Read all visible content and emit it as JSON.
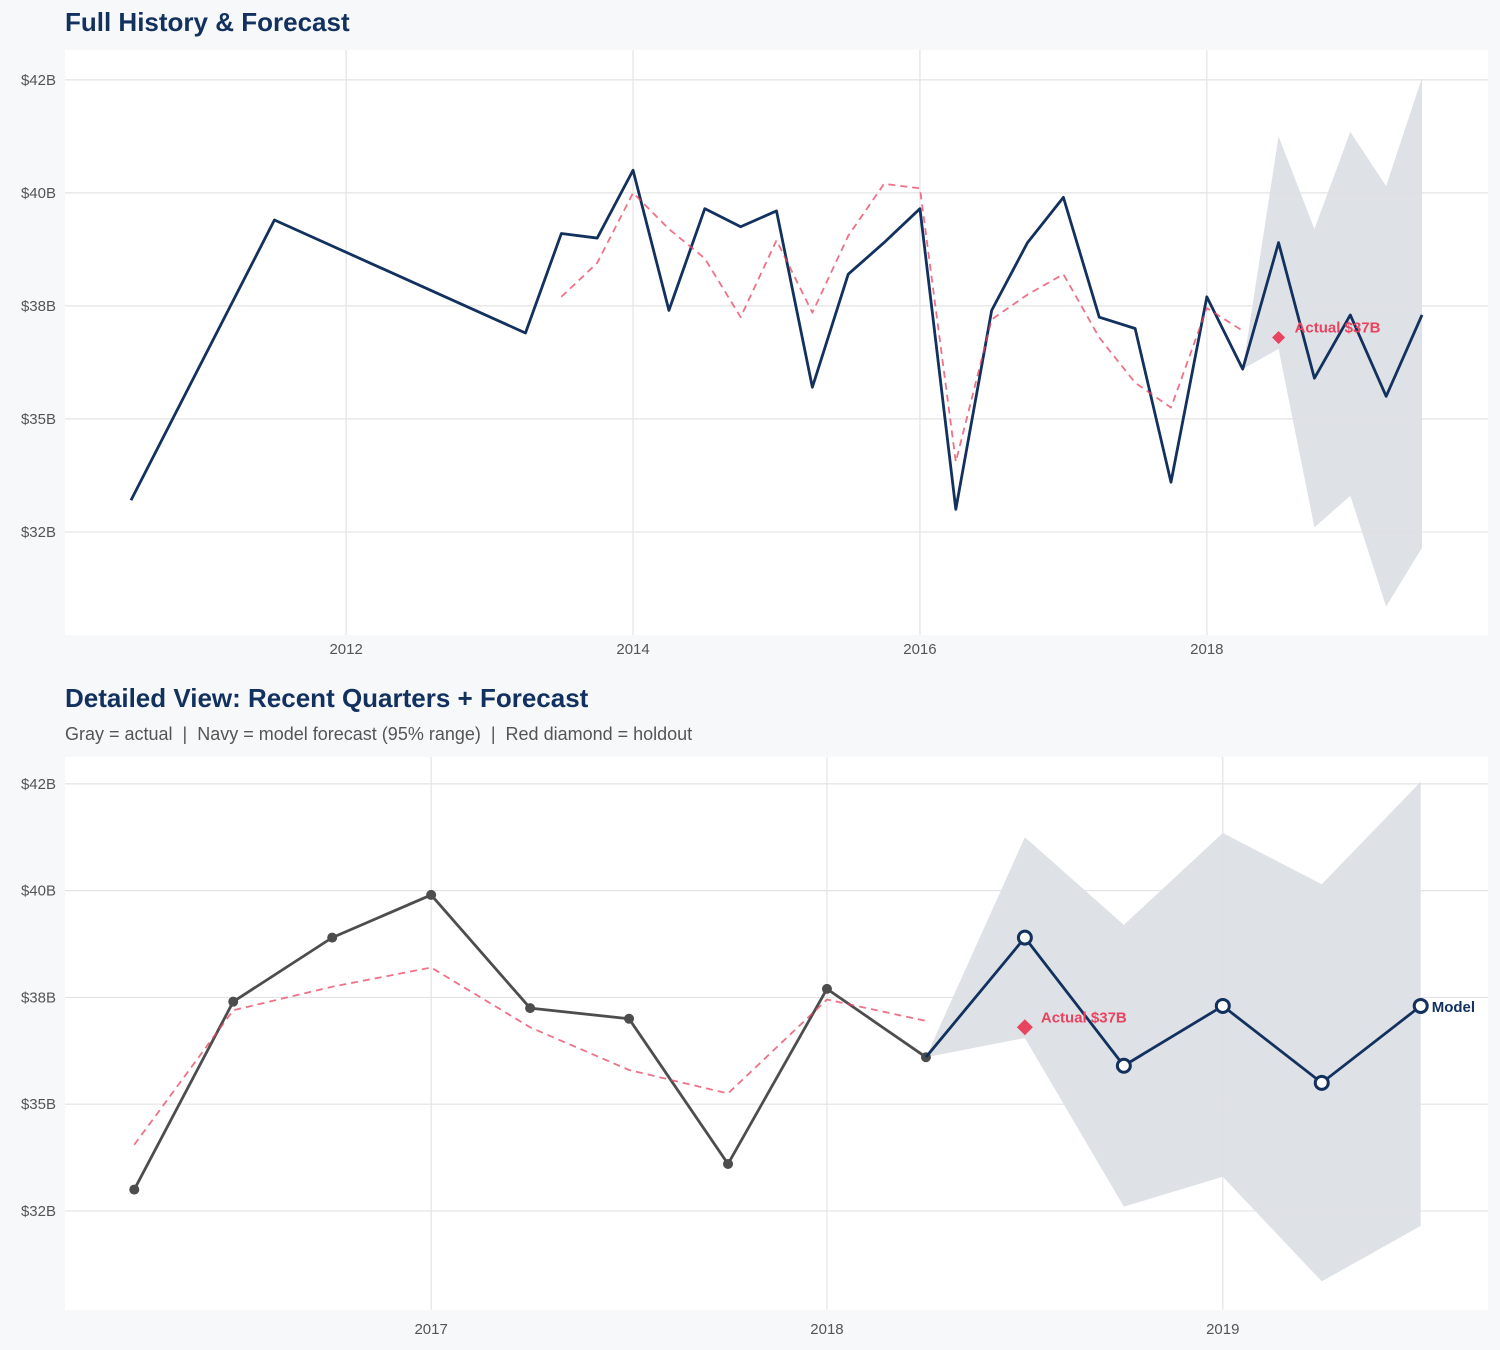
{
  "chart_data": [
    {
      "type": "line",
      "title": "Full History & Forecast",
      "subtitle": "",
      "xlim": [
        2010.04,
        2019.96
      ],
      "ylim": [
        30.22,
        43.16
      ],
      "xticks": [
        {
          "v": 2012,
          "label": "2012"
        },
        {
          "v": 2014,
          "label": "2014"
        },
        {
          "v": 2016,
          "label": "2016"
        },
        {
          "v": 2018,
          "label": "2018"
        }
      ],
      "yticks": [
        {
          "v": 32.5,
          "label": "$32B"
        },
        {
          "v": 35,
          "label": "$35B"
        },
        {
          "v": 37.5,
          "label": "$38B"
        },
        {
          "v": 40,
          "label": "$40B"
        },
        {
          "v": 42.5,
          "label": "$42B"
        }
      ],
      "grid": true,
      "series": [
        {
          "name": "Actual",
          "style": "navy-line",
          "color": "#12315e",
          "x": [
            2010.5,
            2011.5,
            2013.25,
            2013.5,
            2013.75,
            2014,
            2014.25,
            2014.5,
            2014.75,
            2015,
            2015.25,
            2015.5,
            2015.75,
            2016,
            2016.25,
            2016.5,
            2016.75,
            2017,
            2017.25,
            2017.5,
            2017.75,
            2018,
            2018.25,
            2018.5,
            2018.75,
            2019,
            2019.25,
            2019.5
          ],
          "y": [
            33.2,
            39.4,
            36.9,
            39.1,
            39.0,
            40.5,
            37.4,
            39.65,
            39.25,
            39.6,
            35.7,
            38.2,
            38.9,
            39.65,
            33.0,
            37.4,
            38.9,
            39.9,
            37.25,
            37.0,
            33.6,
            37.7,
            36.1,
            38.9,
            35.9,
            37.3,
            35.5,
            37.3
          ]
        },
        {
          "name": "Fitted",
          "style": "red-dashed",
          "color": "#e8435f",
          "x": [
            2013.5,
            2013.75,
            2014,
            2014.25,
            2014.5,
            2014.75,
            2015,
            2015.25,
            2015.5,
            2015.75,
            2016,
            2016.25,
            2016.5,
            2016.75,
            2017,
            2017.25,
            2017.5,
            2017.75,
            2018,
            2018.25
          ],
          "y": [
            37.7,
            38.45,
            40.0,
            39.2,
            38.55,
            37.25,
            38.95,
            37.35,
            39.05,
            40.2,
            40.1,
            34.05,
            37.2,
            37.75,
            38.2,
            36.8,
            35.8,
            35.25,
            37.45,
            36.95
          ]
        }
      ],
      "band": {
        "name": "95% range",
        "color": "#dcdfe5",
        "x": [
          2018.25,
          2018.5,
          2018.75,
          2019,
          2019.25,
          2019.5
        ],
        "upper": [
          36.1,
          41.25,
          39.2,
          41.35,
          40.15,
          42.55
        ],
        "lower": [
          36.1,
          36.55,
          32.6,
          33.3,
          30.85,
          32.15
        ]
      },
      "holdout": {
        "x": 2018.5,
        "y": 36.8,
        "label": "Actual $37B",
        "color": "#e8435f"
      }
    },
    {
      "type": "line",
      "title": "Detailed View: Recent Quarters + Forecast",
      "subtitle": "Gray = actual  |  Navy = model forecast (95% range)  |  Red diamond = holdout",
      "xlim": [
        2016.075,
        2019.67
      ],
      "ylim": [
        30.18,
        43.13
      ],
      "xticks": [
        {
          "v": 2017,
          "label": "2017"
        },
        {
          "v": 2018,
          "label": "2018"
        },
        {
          "v": 2019,
          "label": "2019"
        }
      ],
      "yticks": [
        {
          "v": 32.5,
          "label": "$32B"
        },
        {
          "v": 35,
          "label": "$35B"
        },
        {
          "v": 37.5,
          "label": "$38B"
        },
        {
          "v": 40,
          "label": "$40B"
        },
        {
          "v": 42.5,
          "label": "$42B"
        }
      ],
      "grid": true,
      "series": [
        {
          "name": "Actual",
          "style": "gray-dots",
          "color": "#4d4d4d",
          "x": [
            2016.25,
            2016.5,
            2016.75,
            2017,
            2017.25,
            2017.5,
            2017.75,
            2018,
            2018.25
          ],
          "y": [
            33.0,
            37.4,
            38.9,
            39.9,
            37.25,
            37.0,
            33.6,
            37.7,
            36.1
          ]
        },
        {
          "name": "Fitted",
          "style": "red-dashed",
          "color": "#e8435f",
          "x": [
            2016.25,
            2016.5,
            2016.75,
            2017,
            2017.25,
            2017.5,
            2017.75,
            2018,
            2018.25
          ],
          "y": [
            34.05,
            37.2,
            37.75,
            38.2,
            36.8,
            35.8,
            35.25,
            37.45,
            36.95
          ]
        },
        {
          "name": "Model",
          "style": "navy-hollow",
          "color": "#12315e",
          "label": "Model",
          "x": [
            2018.25,
            2018.5,
            2018.75,
            2019,
            2019.25,
            2019.5
          ],
          "y": [
            36.1,
            38.9,
            35.9,
            37.3,
            35.5,
            37.3
          ]
        }
      ],
      "band": {
        "name": "95% range",
        "color": "#dcdfe5",
        "x": [
          2018.25,
          2018.5,
          2018.75,
          2019,
          2019.25,
          2019.5
        ],
        "upper": [
          36.1,
          41.25,
          39.2,
          41.35,
          40.15,
          42.55
        ],
        "lower": [
          36.1,
          36.55,
          32.6,
          33.3,
          30.85,
          32.15
        ]
      },
      "holdout": {
        "x": 2018.5,
        "y": 36.8,
        "label": "Actual $37B",
        "color": "#e8435f"
      }
    }
  ]
}
